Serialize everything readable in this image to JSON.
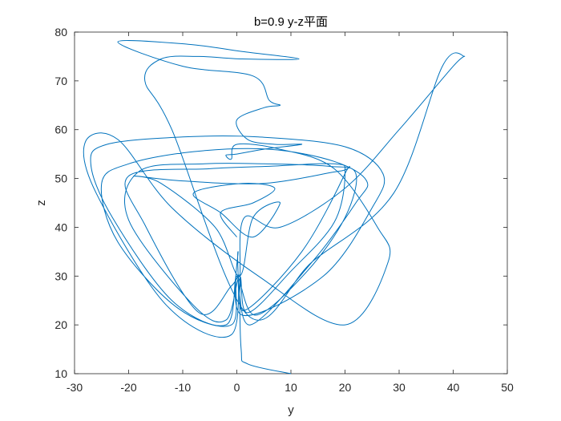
{
  "chart_data": {
    "type": "line",
    "title": "b=0.9 y-z平面",
    "xlabel": "y",
    "ylabel": "z",
    "xlim": [
      -30,
      50
    ],
    "ylim": [
      10,
      80
    ],
    "xticks": [
      "-30",
      "-20",
      "-10",
      "0",
      "10",
      "20",
      "30",
      "40",
      "50"
    ],
    "yticks": [
      "10",
      "20",
      "30",
      "40",
      "50",
      "60",
      "70",
      "80"
    ],
    "grid": false,
    "line_color": "#0072BD",
    "series": [
      {
        "x": [
          10,
          2,
          0.8,
          0.6,
          1.4,
          8,
          20,
          30,
          40,
          42,
          38,
          29,
          14,
          2,
          -12,
          -17,
          -14,
          -7,
          1,
          11.5,
          1,
          -9,
          -22,
          -10,
          3,
          6,
          8,
          5,
          0,
          2,
          7,
          12,
          5,
          0,
          -2,
          -1,
          0,
          8,
          18,
          26,
          28,
          20,
          4,
          -12,
          -22,
          -28,
          -26,
          -13,
          -1,
          0.2,
          1,
          16,
          25,
          27,
          20,
          4,
          -10,
          -24,
          -27,
          -23,
          -12,
          -2,
          0,
          2.5,
          14,
          22,
          24,
          18,
          6,
          -8,
          -20,
          -25,
          -22,
          -11,
          -1,
          0,
          3.5,
          13,
          20,
          22,
          17,
          5,
          -6,
          -18,
          -20,
          -8,
          -2,
          0.5,
          2,
          10,
          18,
          20,
          18,
          6,
          -5,
          -20,
          -17,
          -7,
          -1,
          0.6,
          1.5,
          12,
          20,
          19,
          5,
          -10,
          -19,
          -14,
          -4,
          0.5,
          3,
          8,
          3,
          -3,
          -8,
          1,
          7,
          3,
          -3,
          0
        ],
        "y": [
          10,
          12,
          15,
          30,
          42,
          40,
          48,
          60,
          73,
          75,
          73,
          47,
          33,
          22,
          60,
          70,
          74.5,
          75,
          74.5,
          74.5,
          76,
          77.5,
          78,
          73,
          71,
          66,
          65,
          64.5,
          62,
          58,
          57,
          57,
          56,
          55,
          54.8,
          54,
          57,
          56,
          52,
          40,
          33,
          20,
          30,
          44,
          58,
          57.5,
          47,
          24,
          18,
          35,
          22,
          30,
          44,
          51,
          56.5,
          58.5,
          58.5,
          57,
          53,
          42,
          25,
          20,
          30,
          20,
          33,
          45,
          49.5,
          53.5,
          56,
          55.5,
          53,
          49,
          37,
          23.5,
          20,
          30,
          22,
          31,
          42,
          51,
          52.5,
          53,
          53,
          51.5,
          41.5,
          24,
          21,
          30,
          22.5,
          31,
          41,
          51,
          53,
          52.5,
          52,
          50.5,
          40.5,
          22.5,
          28,
          30,
          23,
          35,
          51,
          51.5,
          49,
          49.5,
          50.5,
          49,
          40,
          30,
          42,
          45,
          38,
          43,
          47,
          49,
          48,
          45,
          43,
          38
        ]
      }
    ]
  }
}
